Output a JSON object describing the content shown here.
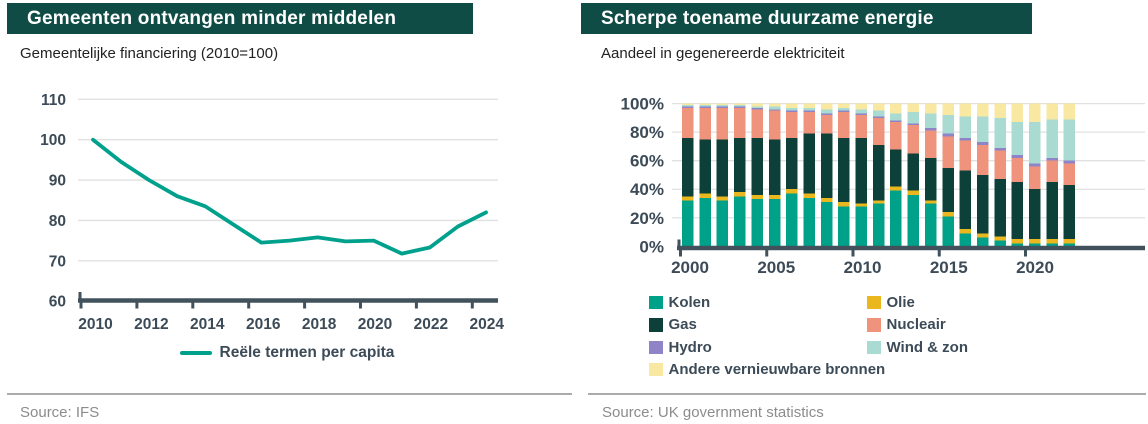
{
  "left_panel": {
    "title": "Gemeenten ontvangen minder middelen",
    "subtitle": "Gemeentelijke financiering (2010=100)",
    "legend_label": "Reële termen per capita",
    "source": "Source: IFS"
  },
  "right_panel": {
    "title": "Scherpe toename duurzame energie",
    "subtitle": "Aandeel in gegenereerde elektriciteit",
    "source": "Source: UK government statistics"
  },
  "colors": {
    "header_bg": "#0f4c45",
    "title_text": "#ffffff",
    "axis": "#42525d",
    "tick_label": "#3c4b57",
    "grid": "#e0e0e0",
    "line_series": "#00a18c",
    "divider": "#ababab",
    "source_text": "#8c8c8c"
  },
  "chart_data": [
    {
      "type": "line",
      "title": "Gemeenten ontvangen minder middelen",
      "subtitle": "Gemeentelijke financiering (2010=100)",
      "x": [
        2010,
        2011,
        2012,
        2013,
        2014,
        2015,
        2016,
        2017,
        2018,
        2019,
        2020,
        2021,
        2022,
        2023,
        2024
      ],
      "series": [
        {
          "name": "Reële termen per capita",
          "color": "#00a18c",
          "values": [
            100,
            94.5,
            90,
            86,
            83.5,
            79,
            74.5,
            75,
            75.8,
            74.8,
            75,
            71.8,
            73.3,
            78.5,
            82
          ]
        }
      ],
      "ylim": [
        60,
        110
      ],
      "yticks": [
        60,
        70,
        80,
        90,
        100,
        110
      ],
      "ytick_labels": [
        "60",
        "70",
        "80",
        "90",
        "100",
        "110"
      ],
      "xticks": [
        2010,
        2012,
        2014,
        2016,
        2018,
        2020,
        2022,
        2024
      ],
      "xtick_labels": [
        "2010",
        "2012",
        "2014",
        "2016",
        "2018",
        "2020",
        "2022",
        "2024"
      ],
      "grid": "horizontal",
      "legend_position": "bottom"
    },
    {
      "type": "bar",
      "stacked": true,
      "normalized": true,
      "title": "Scherpe toename duurzame energie",
      "subtitle": "Aandeel in gegenereerde elektriciteit",
      "categories": [
        2000,
        2001,
        2002,
        2003,
        2004,
        2005,
        2006,
        2007,
        2008,
        2009,
        2010,
        2011,
        2012,
        2013,
        2014,
        2015,
        2016,
        2017,
        2018,
        2019,
        2020,
        2021,
        2022
      ],
      "series": [
        {
          "name": "Kolen",
          "color": "#00a189",
          "values": [
            32,
            34,
            32,
            35,
            33,
            33,
            37,
            34,
            31,
            28,
            28,
            30,
            39,
            36,
            30,
            21,
            9,
            6,
            4,
            2,
            2,
            2,
            2
          ]
        },
        {
          "name": "Olie",
          "color": "#eab81e",
          "values": [
            3,
            3,
            3,
            3,
            3,
            3,
            3,
            3,
            3,
            3,
            2,
            2,
            3,
            3,
            2,
            3,
            3,
            3,
            3,
            3,
            3,
            3,
            3
          ]
        },
        {
          "name": "Gas",
          "color": "#0c4038",
          "values": [
            41,
            38,
            40,
            38,
            40,
            39,
            36,
            42,
            45,
            45,
            46,
            39,
            26,
            26,
            30,
            31,
            41,
            41,
            40,
            40,
            35,
            40,
            38
          ]
        },
        {
          "name": "Nucleair",
          "color": "#f0937d",
          "values": [
            21,
            22,
            22,
            21,
            20,
            20,
            18,
            15,
            13,
            18,
            16,
            19,
            19,
            20,
            19,
            22,
            21,
            21,
            20,
            17,
            16,
            15,
            15
          ]
        },
        {
          "name": "Hydro",
          "color": "#8f84c8",
          "values": [
            1,
            1,
            1,
            1,
            1,
            1,
            1,
            1,
            1,
            1,
            1,
            1,
            1,
            1,
            2,
            2,
            2,
            2,
            2,
            2,
            2,
            2,
            2
          ]
        },
        {
          "name": "Wind & zon",
          "color": "#aadbd2",
          "values": [
            1,
            1,
            1,
            1,
            1,
            2,
            2,
            2,
            3,
            2,
            3,
            4,
            5,
            8,
            10,
            13,
            15,
            18,
            21,
            23,
            29,
            27,
            29
          ]
        },
        {
          "name": "Andere vernieuwbare bronnen",
          "color": "#f8e8a2",
          "values": [
            1,
            1,
            1,
            1,
            2,
            2,
            3,
            3,
            4,
            3,
            4,
            5,
            7,
            6,
            7,
            8,
            9,
            9,
            10,
            13,
            13,
            11,
            11
          ]
        }
      ],
      "ylim": [
        0,
        100
      ],
      "yticks": [
        0,
        20,
        40,
        60,
        80,
        100
      ],
      "ytick_labels": [
        "0%",
        "20%",
        "40%",
        "60%",
        "80%",
        "100%"
      ],
      "xticks": [
        2000,
        2005,
        2010,
        2015,
        2020
      ],
      "xtick_labels": [
        "2000",
        "2005",
        "2010",
        "2015",
        "2020"
      ],
      "grid": "horizontal",
      "legend_position": "bottom",
      "legend_columns": [
        [
          "Kolen",
          "Gas",
          "Hydro",
          "Andere vernieuwbare bronnen"
        ],
        [
          "Olie",
          "Nucleair",
          "Wind & zon"
        ]
      ]
    }
  ]
}
